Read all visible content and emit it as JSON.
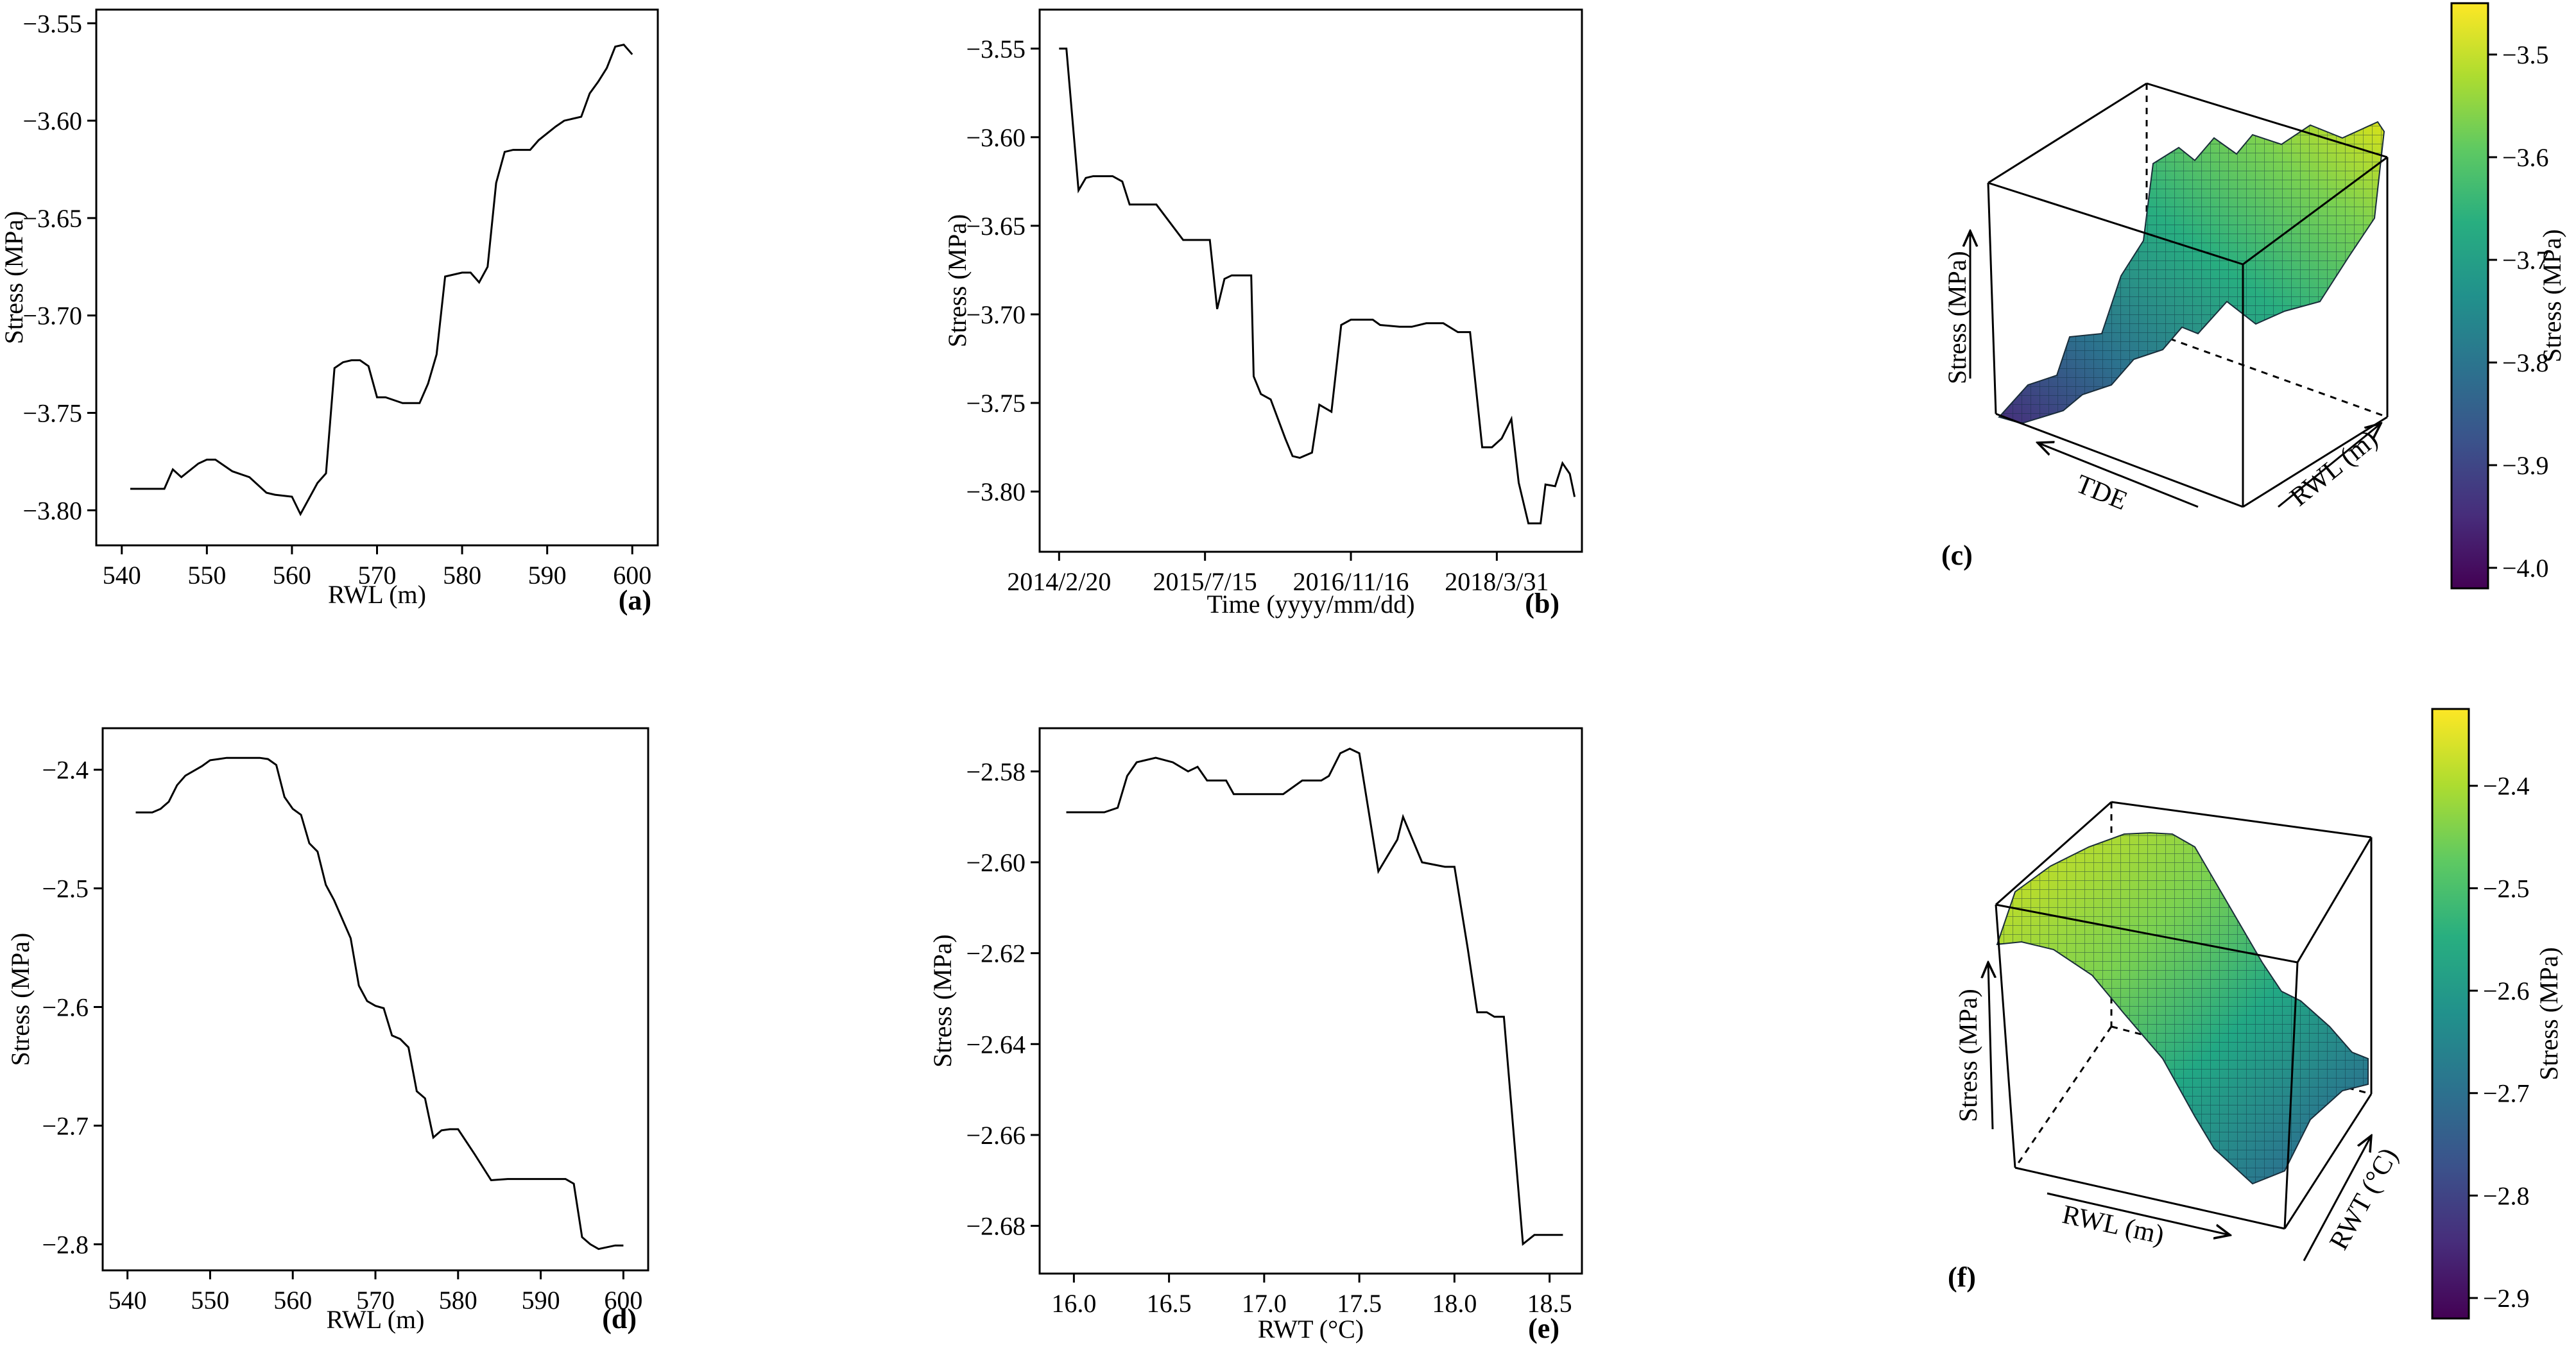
{
  "chart_data": [
    {
      "panel": "a",
      "type": "line",
      "panel_label": "(a)",
      "xlabel": "RWL (m)",
      "ylabel": "Stress (MPa)",
      "xlim": [
        537,
        603
      ],
      "ylim": [
        -3.818,
        -3.543
      ],
      "xticks": [
        540,
        550,
        560,
        570,
        580,
        590,
        600
      ],
      "yticks": [
        -3.8,
        -3.75,
        -3.7,
        -3.65,
        -3.6,
        -3.55
      ],
      "ytick_labels": [
        "−3.80",
        "−3.75",
        "−3.70",
        "−3.65",
        "−3.60",
        "−3.55"
      ],
      "x": [
        541,
        545,
        546,
        547,
        549,
        550,
        551,
        553,
        555,
        557,
        558,
        560,
        561,
        563,
        564,
        565,
        566,
        567,
        568,
        569,
        570,
        571,
        573,
        575,
        576,
        577,
        578,
        580,
        581,
        582,
        583,
        584,
        585,
        586,
        588,
        589,
        591,
        592,
        594,
        595,
        596,
        597,
        598,
        599,
        600
      ],
      "y": [
        -3.789,
        -3.789,
        -3.779,
        -3.783,
        -3.776,
        -3.774,
        -3.774,
        -3.78,
        -3.783,
        -3.791,
        -3.792,
        -3.793,
        -3.802,
        -3.786,
        -3.781,
        -3.727,
        -3.724,
        -3.723,
        -3.723,
        -3.726,
        -3.742,
        -3.742,
        -3.745,
        -3.745,
        -3.735,
        -3.72,
        -3.68,
        -3.678,
        -3.678,
        -3.683,
        -3.675,
        -3.632,
        -3.616,
        -3.615,
        -3.615,
        -3.61,
        -3.603,
        -3.6,
        -3.598,
        -3.586,
        -3.58,
        -3.573,
        -3.562,
        -3.561,
        -3.566
      ]
    },
    {
      "panel": "b",
      "type": "line",
      "panel_label": "(b)",
      "xlabel": "Time (yyyy/mm/dd)",
      "ylabel": "Stress (MPa)",
      "x_note": "x values are sample indices along the time axis",
      "xlim": [
        -0.8,
        21.5
      ],
      "ylim": [
        -3.834,
        -3.528
      ],
      "xticks": [
        0,
        6,
        12,
        18
      ],
      "xtick_labels": [
        "2014/2/20",
        "2015/7/15",
        "2016/11/16",
        "2018/3/31"
      ],
      "yticks": [
        -3.8,
        -3.75,
        -3.7,
        -3.65,
        -3.6,
        -3.55
      ],
      "ytick_labels": [
        "−3.80",
        "−3.75",
        "−3.70",
        "−3.65",
        "−3.60",
        "−3.55"
      ],
      "x": [
        0,
        0.3,
        0.8,
        1.1,
        1.4,
        2.2,
        2.6,
        2.9,
        3.9,
        4.0,
        5.1,
        5.3,
        6.2,
        6.5,
        6.8,
        7.1,
        7.9,
        8.0,
        8.3,
        8.7,
        9.3,
        9.6,
        9.9,
        10.4,
        10.7,
        11.2,
        11.6,
        12.0,
        12.3,
        12.9,
        13.2,
        14.0,
        14.5,
        15.1,
        15.8,
        16.4,
        16.6,
        16.9,
        17.4,
        17.8,
        18.2,
        18.6,
        18.9,
        19.3,
        19.8,
        20.0,
        20.4,
        20.7,
        21.0,
        21.2
      ],
      "y": [
        -3.55,
        -3.55,
        -3.63,
        -3.623,
        -3.622,
        -3.622,
        -3.625,
        -3.638,
        -3.638,
        -3.638,
        -3.658,
        -3.658,
        -3.658,
        -3.697,
        -3.68,
        -3.678,
        -3.678,
        -3.735,
        -3.745,
        -3.748,
        -3.77,
        -3.78,
        -3.781,
        -3.778,
        -3.751,
        -3.755,
        -3.706,
        -3.703,
        -3.703,
        -3.703,
        -3.706,
        -3.707,
        -3.707,
        -3.705,
        -3.705,
        -3.71,
        -3.71,
        -3.71,
        -3.775,
        -3.775,
        -3.77,
        -3.759,
        -3.795,
        -3.818,
        -3.818,
        -3.796,
        -3.797,
        -3.784,
        -3.79,
        -3.803
      ]
    },
    {
      "panel": "c",
      "type": "surface",
      "panel_label": "(c)",
      "axis_labels": [
        "Stress (MPa)",
        "TDE",
        "RWL (m)"
      ],
      "colorbar_label": "Stress (MPa)",
      "colorbar_range": [
        -4.02,
        -3.45
      ],
      "colorbar_ticks": [
        "−3.5",
        "−3.6",
        "−3.7",
        "−3.8",
        "−3.9",
        "−4.0"
      ],
      "colorbar_tick_values": [
        -3.5,
        -3.6,
        -3.7,
        -3.8,
        -3.9,
        -4.0
      ]
    },
    {
      "panel": "d",
      "type": "line",
      "panel_label": "(d)",
      "xlabel": "RWL (m)",
      "ylabel": "Stress (MPa)",
      "xlim": [
        537,
        603
      ],
      "ylim": [
        -2.822,
        -2.365
      ],
      "xticks": [
        540,
        550,
        560,
        570,
        580,
        590,
        600
      ],
      "yticks": [
        -2.8,
        -2.7,
        -2.6,
        -2.5,
        -2.4
      ],
      "ytick_labels": [
        "−2.8",
        "−2.7",
        "−2.6",
        "−2.5",
        "−2.4"
      ],
      "x": [
        541,
        543,
        544,
        545,
        546,
        547,
        549,
        550,
        551,
        552,
        554,
        556,
        557,
        558,
        559,
        560,
        561,
        562,
        563,
        564,
        565,
        567,
        568,
        569,
        570,
        571,
        572,
        573,
        574,
        575,
        576,
        577,
        578,
        579,
        580,
        582,
        584,
        586,
        588,
        590,
        591,
        593,
        594,
        595,
        596,
        597,
        599,
        600
      ],
      "y": [
        -2.436,
        -2.436,
        -2.433,
        -2.427,
        -2.413,
        -2.405,
        -2.397,
        -2.392,
        -2.391,
        -2.39,
        -2.39,
        -2.39,
        -2.391,
        -2.396,
        -2.423,
        -2.433,
        -2.438,
        -2.462,
        -2.469,
        -2.497,
        -2.51,
        -2.542,
        -2.582,
        -2.595,
        -2.599,
        -2.601,
        -2.624,
        -2.627,
        -2.634,
        -2.671,
        -2.677,
        -2.71,
        -2.704,
        -2.703,
        -2.703,
        -2.724,
        -2.746,
        -2.745,
        -2.745,
        -2.745,
        -2.745,
        -2.745,
        -2.749,
        -2.794,
        -2.8,
        -2.804,
        -2.801,
        -2.801
      ]
    },
    {
      "panel": "e",
      "type": "line",
      "panel_label": "(e)",
      "xlabel": "RWT (°C)",
      "ylabel": "Stress (MPa)",
      "xlim": [
        15.82,
        18.67
      ],
      "ylim": [
        -2.6905,
        -2.5705
      ],
      "xticks": [
        16.0,
        16.5,
        17.0,
        17.5,
        18.0,
        18.5
      ],
      "xtick_labels": [
        "16.0",
        "16.5",
        "17.0",
        "17.5",
        "18.0",
        "18.5"
      ],
      "yticks": [
        -2.68,
        -2.66,
        -2.64,
        -2.62,
        -2.6,
        -2.58
      ],
      "ytick_labels": [
        "−2.68",
        "−2.66",
        "−2.64",
        "−2.62",
        "−2.60",
        "−2.58"
      ],
      "x": [
        15.96,
        16.16,
        16.23,
        16.28,
        16.33,
        16.43,
        16.52,
        16.6,
        16.65,
        16.7,
        16.8,
        16.84,
        17.1,
        17.2,
        17.3,
        17.34,
        17.4,
        17.45,
        17.5,
        17.6,
        17.7,
        17.73,
        17.83,
        17.95,
        18.0,
        18.07,
        18.12,
        18.17,
        18.21,
        18.26,
        18.32,
        18.36,
        18.42,
        18.57
      ],
      "y": [
        -2.589,
        -2.589,
        -2.588,
        -2.581,
        -2.578,
        -2.577,
        -2.578,
        -2.58,
        -2.579,
        -2.582,
        -2.582,
        -2.585,
        -2.585,
        -2.582,
        -2.582,
        -2.581,
        -2.576,
        -2.575,
        -2.576,
        -2.602,
        -2.595,
        -2.59,
        -2.6,
        -2.601,
        -2.601,
        -2.619,
        -2.633,
        -2.633,
        -2.634,
        -2.634,
        -2.664,
        -2.684,
        -2.682,
        -2.682
      ]
    },
    {
      "panel": "f",
      "type": "surface",
      "panel_label": "(f)",
      "axis_labels": [
        "Stress (MPa)",
        "RWL (m)",
        "RWT (°C)"
      ],
      "colorbar_label": "Stress (MPa)",
      "colorbar_range": [
        -2.92,
        -2.325
      ],
      "colorbar_ticks": [
        "−2.4",
        "−2.5",
        "−2.6",
        "−2.7",
        "−2.8",
        "−2.9"
      ],
      "colorbar_tick_values": [
        -2.4,
        -2.5,
        -2.6,
        -2.7,
        -2.8,
        -2.9
      ]
    }
  ]
}
